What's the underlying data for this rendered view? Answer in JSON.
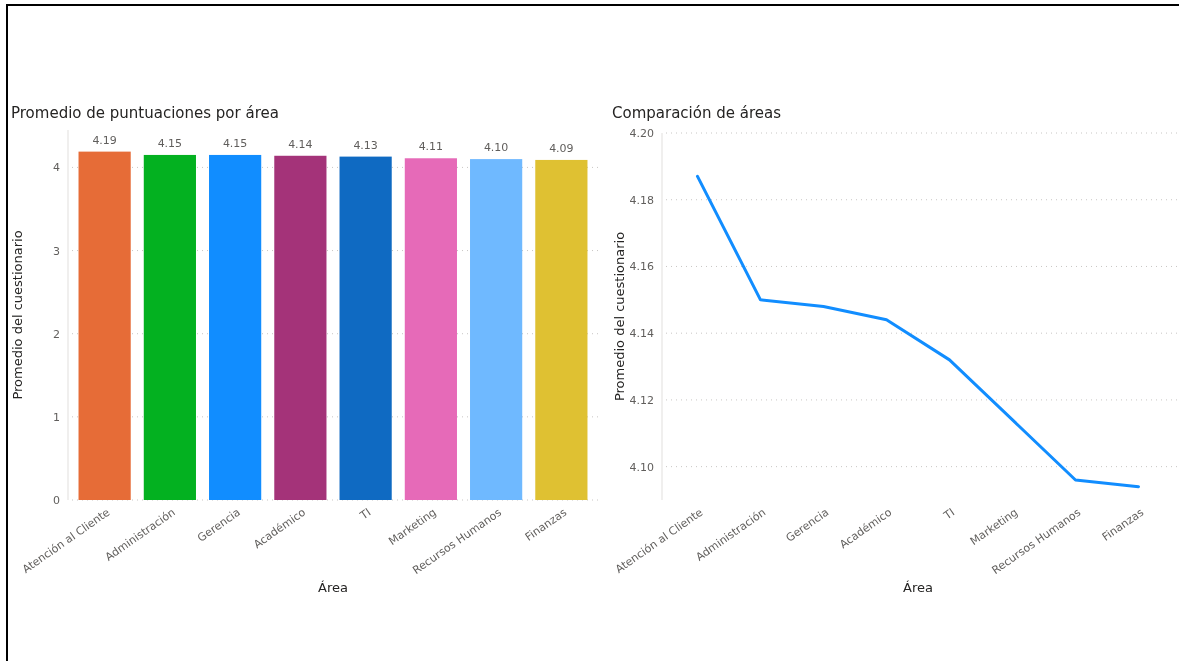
{
  "chart_data": [
    {
      "type": "bar",
      "title": "Promedio de puntuaciones por área",
      "xlabel": "Área",
      "ylabel": "Promedio del cuestionario",
      "categories": [
        "Atención al Cliente",
        "Administración",
        "Gerencia",
        "Académico",
        "TI",
        "Marketing",
        "Recursos Humanos",
        "Finanzas"
      ],
      "values": [
        4.19,
        4.15,
        4.15,
        4.14,
        4.13,
        4.11,
        4.1,
        4.09
      ],
      "colors": [
        "#e66c37",
        "#03b120",
        "#118dff",
        "#a43379",
        "#0f6ac2",
        "#e66ab8",
        "#6fb9ff",
        "#dfc132"
      ],
      "value_labels": [
        "4.19",
        "4.15",
        "4.15",
        "4.14",
        "4.13",
        "4.11",
        "4.10",
        "4.09"
      ],
      "ylim": [
        0,
        4.45
      ],
      "yticks": [
        0,
        1,
        2,
        3,
        4
      ],
      "grid": "y"
    },
    {
      "type": "line",
      "title": "Comparación de áreas",
      "xlabel": "Área",
      "ylabel": "Promedio del cuestionario",
      "categories": [
        "Atención al Cliente",
        "Administración",
        "Gerencia",
        "Académico",
        "TI",
        "Marketing",
        "Recursos Humanos",
        "Finanzas"
      ],
      "series": [
        {
          "color": "#118dff",
          "values": [
            4.187,
            4.15,
            4.148,
            4.144,
            4.132,
            4.114,
            4.096,
            4.094
          ]
        }
      ],
      "ylim": [
        4.09,
        4.2
      ],
      "yticks": [
        {
          "value": 4.1,
          "label": "4.10"
        },
        {
          "value": 4.12,
          "label": "4.12"
        },
        {
          "value": 4.14,
          "label": "4.14"
        },
        {
          "value": 4.16,
          "label": "4.16"
        },
        {
          "value": 4.18,
          "label": "4.18"
        },
        {
          "value": 4.2,
          "label": "4.20"
        }
      ],
      "grid": "y",
      "marker": "none",
      "line_style": "solid"
    }
  ]
}
